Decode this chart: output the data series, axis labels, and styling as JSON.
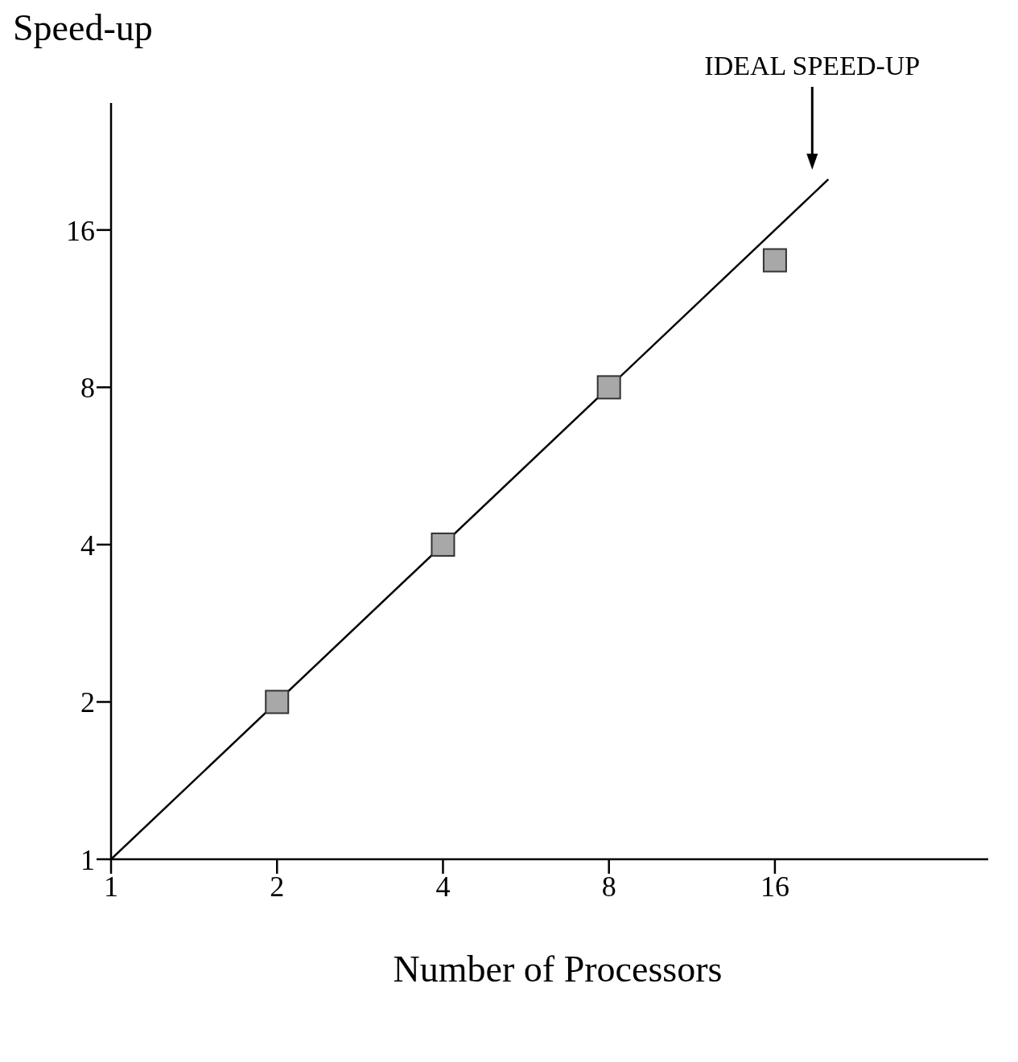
{
  "chart_data": {
    "type": "scatter",
    "xlabel": "Number of Processors",
    "ylabel": "Speed-up",
    "log": "xy",
    "xlim": [
      1,
      39
    ],
    "ylim": [
      1,
      28
    ],
    "xticks": [
      1,
      2,
      4,
      8,
      16
    ],
    "yticks": [
      1,
      2,
      4,
      8,
      16
    ],
    "grid": false,
    "legend": false,
    "annotations": [
      "IDEAL SPEED-UP"
    ],
    "series": [
      {
        "type": "line",
        "x": [
          1,
          20
        ],
        "values": [
          1,
          20
        ],
        "color": "#000000",
        "line_style": "solid"
      },
      {
        "x": [
          2,
          4,
          8,
          16
        ],
        "values": [
          2,
          4,
          8,
          14
        ],
        "color": "#a8a8a8",
        "marker": "square"
      }
    ]
  }
}
